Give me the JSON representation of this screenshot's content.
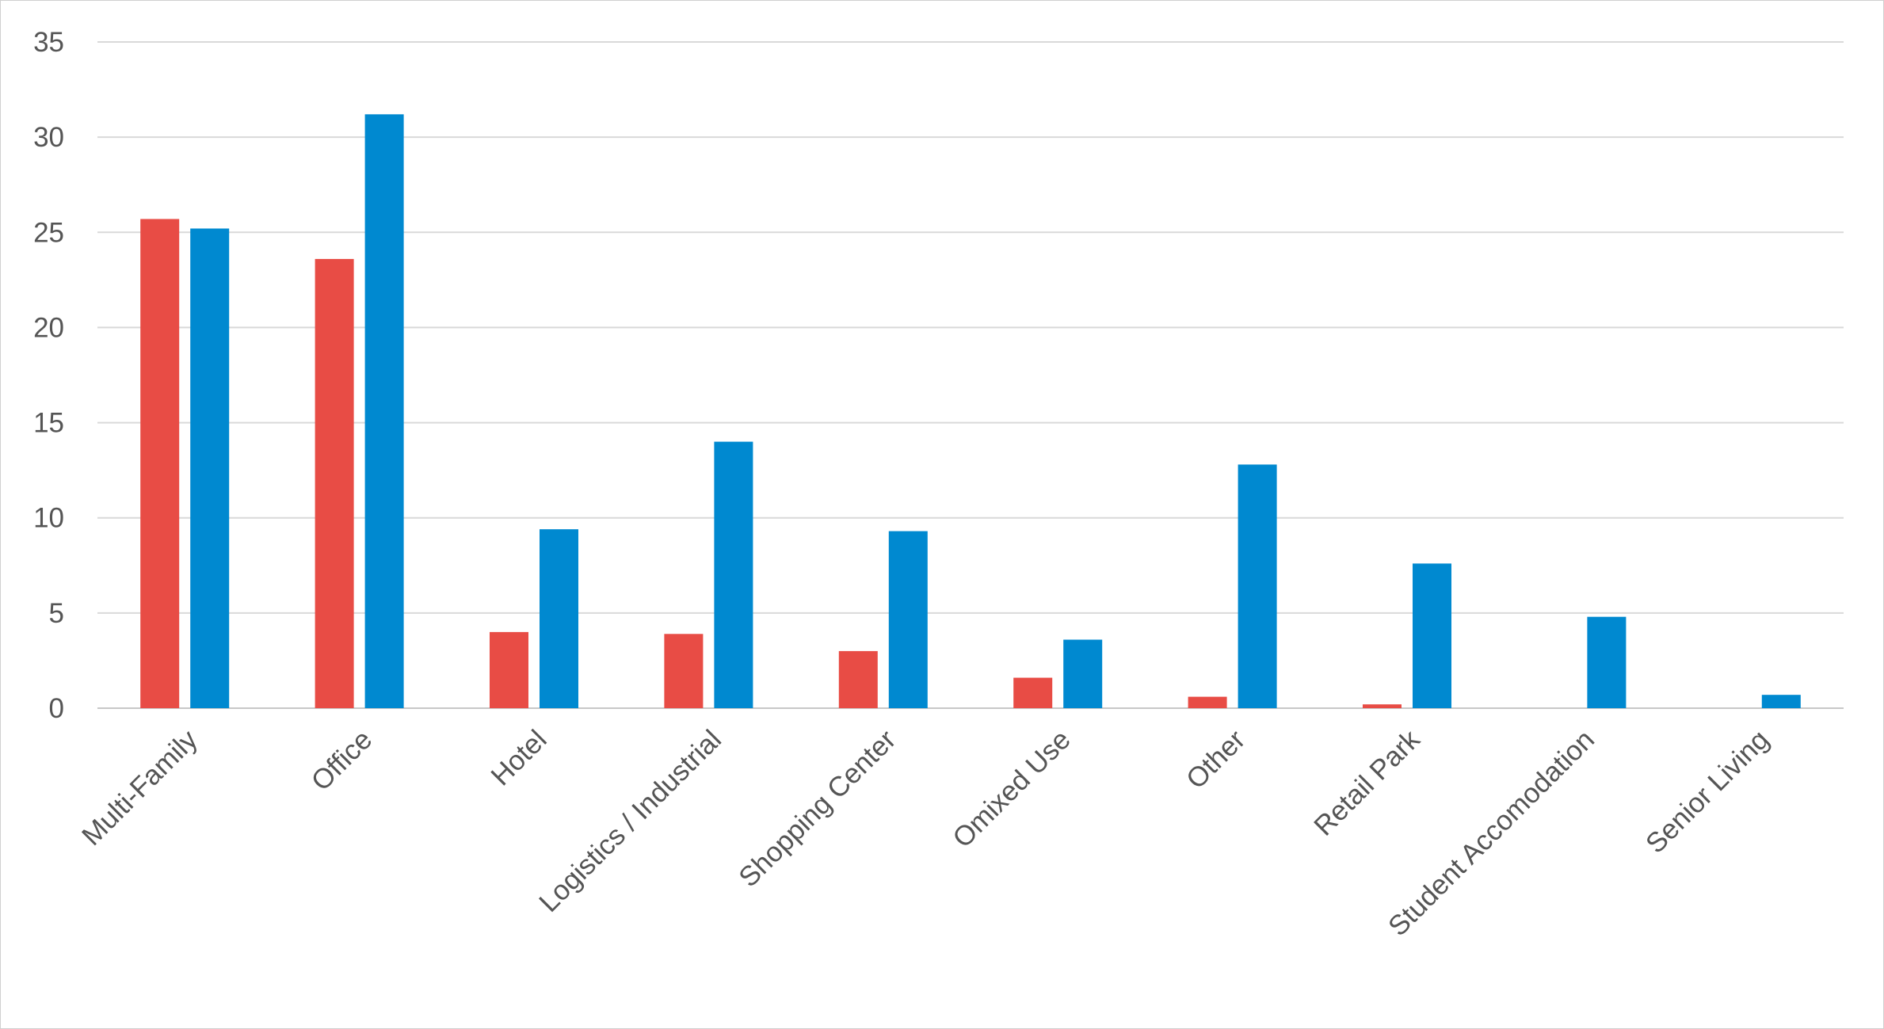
{
  "chart_data": {
    "type": "bar",
    "title": "",
    "xlabel": "",
    "ylabel": "",
    "ylim": [
      0,
      35
    ],
    "yticks": [
      0,
      5,
      10,
      15,
      20,
      25,
      30,
      35
    ],
    "grid": true,
    "legend": "none",
    "categories": [
      "Multi-Family",
      "Office",
      "Hotel",
      "Logistics / Industrial",
      "Shopping Center",
      "Omixed Use",
      "Other",
      "Retail Park",
      "Student Accomodation",
      "Senior Living"
    ],
    "series": [
      {
        "name": "Series 1",
        "color": "#e84c45",
        "values": [
          25.7,
          23.6,
          4.0,
          3.9,
          3.0,
          1.6,
          0.6,
          0.2,
          0,
          0
        ]
      },
      {
        "name": "Series 2",
        "color": "#0089d0",
        "values": [
          25.2,
          31.2,
          9.4,
          14.0,
          9.3,
          3.6,
          12.8,
          7.6,
          4.8,
          0.7
        ]
      }
    ]
  }
}
